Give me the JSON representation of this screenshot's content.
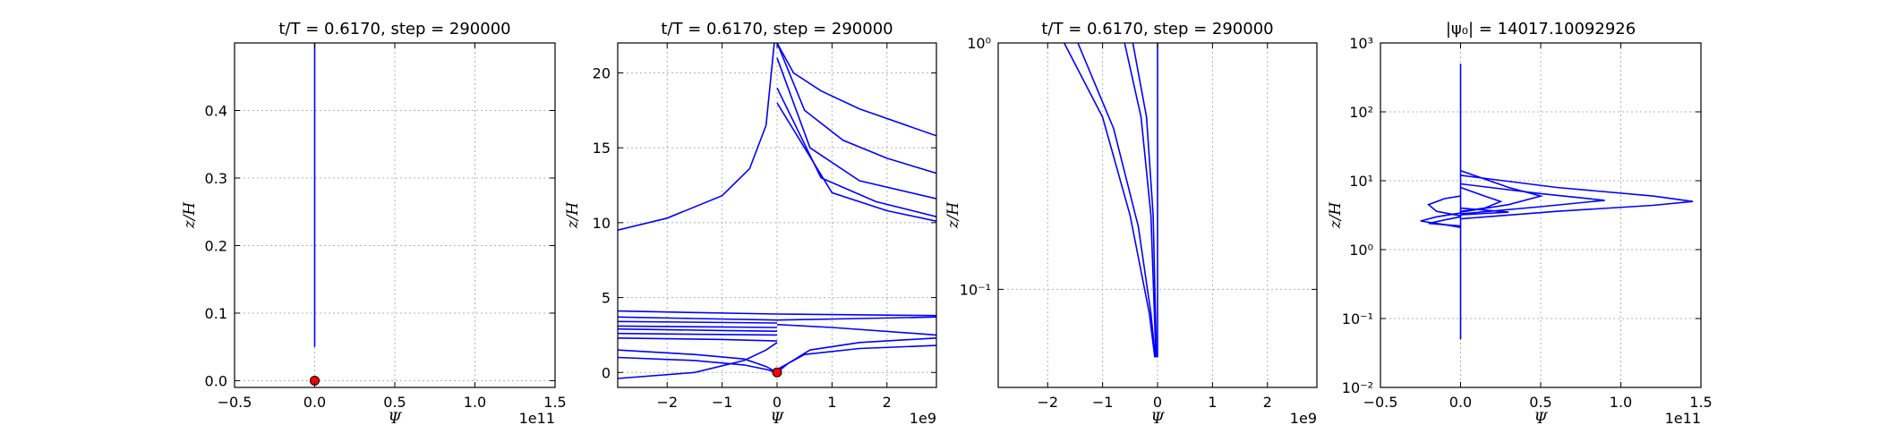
{
  "figure": {
    "colors": {
      "curve": "#0000ff",
      "marker": "#ff0000",
      "grid": "#b0b0b0"
    }
  },
  "chart_data": [
    {
      "type": "line",
      "title": "t/T = 0.6170, step = 290000",
      "xlabel": "Ψ",
      "ylabel": "z/H",
      "x_offset_text": "1e11",
      "xlim": [
        -0.5,
        1.5
      ],
      "ylim": [
        -0.01,
        0.5
      ],
      "xscale": "linear",
      "yscale": "linear",
      "grid": true,
      "xticks": [
        -0.5,
        0.0,
        0.5,
        1.0,
        1.5
      ],
      "xtick_labels": [
        "−0.5",
        "0.0",
        "0.5",
        "1.0",
        "1.5"
      ],
      "yticks": [
        0.0,
        0.1,
        0.2,
        0.3,
        0.4
      ],
      "ytick_labels": [
        "0.0",
        "0.1",
        "0.2",
        "0.3",
        "0.4"
      ],
      "series": [
        {
          "values": [
            [
              0.0,
              0.05
            ],
            [
              0.0,
              0.5
            ]
          ]
        }
      ],
      "markers": [
        {
          "x": 0.0,
          "y": 0.0
        }
      ]
    },
    {
      "type": "line",
      "title": "t/T = 0.6170, step = 290000",
      "xlabel": "Ψ",
      "ylabel": "z/H",
      "x_offset_text": "1e9",
      "xlim": [
        -2.9,
        2.9
      ],
      "ylim": [
        -1.0,
        22.0
      ],
      "xscale": "linear",
      "yscale": "linear",
      "grid": true,
      "xticks": [
        -2,
        -1,
        0,
        1,
        2
      ],
      "xtick_labels": [
        "−2",
        "−1",
        "0",
        "1",
        "2"
      ],
      "yticks": [
        0,
        5,
        10,
        15,
        20
      ],
      "ytick_labels": [
        "0",
        "5",
        "10",
        "15",
        "20"
      ],
      "series": [
        {
          "values": [
            [
              -2.9,
              9.5
            ],
            [
              -2.0,
              10.3
            ],
            [
              -1.0,
              11.8
            ],
            [
              -0.5,
              13.6
            ],
            [
              -0.2,
              16.5
            ],
            [
              -0.05,
              22.0
            ]
          ]
        },
        {
          "values": [
            [
              0.0,
              22.0
            ],
            [
              0.3,
              20.0
            ],
            [
              0.8,
              18.8
            ],
            [
              1.5,
              17.6
            ],
            [
              2.9,
              15.8
            ]
          ]
        },
        {
          "values": [
            [
              0.0,
              22.0
            ],
            [
              0.5,
              17.5
            ],
            [
              1.2,
              15.5
            ],
            [
              2.0,
              14.3
            ],
            [
              2.9,
              13.3
            ]
          ]
        },
        {
          "values": [
            [
              0.0,
              21.0
            ],
            [
              0.6,
              15.0
            ],
            [
              1.5,
              12.8
            ],
            [
              2.9,
              11.6
            ]
          ]
        },
        {
          "values": [
            [
              0.0,
              19.0
            ],
            [
              0.8,
              13.0
            ],
            [
              1.8,
              11.4
            ],
            [
              2.9,
              10.4
            ]
          ]
        },
        {
          "values": [
            [
              0.0,
              18.0
            ],
            [
              1.0,
              12.0
            ],
            [
              2.0,
              10.8
            ],
            [
              2.9,
              10.1
            ]
          ]
        },
        {
          "values": [
            [
              -2.9,
              4.1
            ],
            [
              -1.5,
              4.0
            ],
            [
              0.0,
              3.9
            ],
            [
              2.9,
              3.8
            ]
          ]
        },
        {
          "values": [
            [
              -2.9,
              3.7
            ],
            [
              -1.5,
              3.6
            ],
            [
              0.0,
              3.5
            ],
            [
              1.5,
              3.6
            ],
            [
              2.9,
              3.7
            ]
          ]
        },
        {
          "values": [
            [
              -2.9,
              3.4
            ],
            [
              0.0,
              3.3
            ]
          ]
        },
        {
          "values": [
            [
              -2.9,
              3.1
            ],
            [
              0.0,
              3.0
            ]
          ]
        },
        {
          "values": [
            [
              -2.9,
              2.9
            ],
            [
              -1.0,
              2.8
            ],
            [
              0.0,
              2.75
            ]
          ]
        },
        {
          "values": [
            [
              -2.9,
              2.6
            ],
            [
              0.0,
              2.5
            ]
          ]
        },
        {
          "values": [
            [
              -2.9,
              2.3
            ],
            [
              -1.0,
              2.2
            ],
            [
              0.0,
              2.1
            ]
          ]
        },
        {
          "values": [
            [
              -2.9,
              1.5
            ],
            [
              -1.5,
              1.2
            ],
            [
              -0.6,
              0.9
            ],
            [
              -0.2,
              0.4
            ],
            [
              0.0,
              0.0
            ]
          ]
        },
        {
          "values": [
            [
              -2.9,
              1.0
            ],
            [
              -1.5,
              0.8
            ],
            [
              -0.6,
              0.5
            ],
            [
              -0.2,
              0.2
            ],
            [
              0.0,
              0.0
            ]
          ]
        },
        {
          "values": [
            [
              -2.9,
              -0.4
            ],
            [
              -1.5,
              0.0
            ],
            [
              -0.6,
              0.8
            ],
            [
              -0.2,
              1.5
            ],
            [
              0.0,
              2.0
            ]
          ]
        },
        {
          "values": [
            [
              0.0,
              0.0
            ],
            [
              0.2,
              0.6
            ],
            [
              0.6,
              1.5
            ],
            [
              1.5,
              2.0
            ],
            [
              2.9,
              2.3
            ]
          ]
        },
        {
          "values": [
            [
              0.0,
              0.2
            ],
            [
              0.5,
              1.2
            ],
            [
              1.5,
              1.6
            ],
            [
              2.9,
              1.8
            ]
          ]
        },
        {
          "values": [
            [
              0.0,
              3.2
            ],
            [
              1.0,
              3.0
            ],
            [
              2.9,
              2.5
            ]
          ]
        }
      ],
      "markers": [
        {
          "x": 0.0,
          "y": 0.0
        }
      ]
    },
    {
      "type": "line",
      "title": "t/T = 0.6170, step = 290000",
      "xlabel": "Ψ",
      "ylabel": "z/H",
      "x_offset_text": "1e9",
      "xlim": [
        -2.9,
        2.9
      ],
      "ylim": [
        0.04,
        1.0
      ],
      "xscale": "linear",
      "yscale": "log",
      "grid": true,
      "xticks": [
        -2,
        -1,
        0,
        1,
        2
      ],
      "xtick_labels": [
        "−2",
        "−1",
        "0",
        "1",
        "2"
      ],
      "yticks": [
        0.1,
        1.0
      ],
      "ytick_labels": [
        "10⁻¹",
        "10⁰"
      ],
      "series": [
        {
          "values": [
            [
              -1.7,
              1.0
            ],
            [
              -1.0,
              0.5
            ],
            [
              -0.5,
              0.2
            ],
            [
              -0.15,
              0.08
            ],
            [
              -0.05,
              0.053
            ]
          ]
        },
        {
          "values": [
            [
              -1.45,
              1.0
            ],
            [
              -0.8,
              0.45
            ],
            [
              -0.35,
              0.18
            ],
            [
              -0.12,
              0.08
            ],
            [
              -0.04,
              0.053
            ]
          ]
        },
        {
          "values": [
            [
              -0.6,
              1.0
            ],
            [
              -0.3,
              0.5
            ],
            [
              -0.12,
              0.2
            ],
            [
              -0.03,
              0.053
            ]
          ]
        },
        {
          "values": [
            [
              -0.45,
              1.0
            ],
            [
              -0.2,
              0.5
            ],
            [
              -0.08,
              0.2
            ],
            [
              -0.02,
              0.053
            ]
          ]
        },
        {
          "values": [
            [
              0.0,
              0.053
            ],
            [
              0.0,
              1.0
            ]
          ]
        }
      ],
      "markers": []
    },
    {
      "type": "line",
      "title": "|ψ₀| = 14017.10092926",
      "xlabel": "Ψ",
      "ylabel": "z/H",
      "x_offset_text": "1e11",
      "xlim": [
        -0.5,
        1.5
      ],
      "ylim": [
        0.01,
        1000
      ],
      "xscale": "linear",
      "yscale": "log",
      "grid": true,
      "xticks": [
        -0.5,
        0.0,
        0.5,
        1.0,
        1.5
      ],
      "xtick_labels": [
        "−0.5",
        "0.0",
        "0.5",
        "1.0",
        "1.5"
      ],
      "yticks": [
        0.01,
        0.1,
        1,
        10,
        100,
        1000
      ],
      "ytick_labels": [
        "10⁻²",
        "10⁻¹",
        "10⁰",
        "10¹",
        "10²",
        "10³"
      ],
      "series": [
        {
          "values": [
            [
              0.0,
              0.05
            ],
            [
              0.0,
              500
            ]
          ]
        },
        {
          "values": [
            [
              0.0,
              12
            ],
            [
              0.6,
              8
            ],
            [
              1.2,
              6
            ],
            [
              1.45,
              5
            ],
            [
              1.2,
              4.4
            ],
            [
              0.6,
              3.6
            ],
            [
              0.0,
              2.8
            ]
          ]
        },
        {
          "values": [
            [
              0.0,
              9
            ],
            [
              0.5,
              6.5
            ],
            [
              0.9,
              5.2
            ],
            [
              0.5,
              4.2
            ],
            [
              0.0,
              3.3
            ]
          ]
        },
        {
          "values": [
            [
              0.0,
              14
            ],
            [
              0.3,
              8
            ],
            [
              0.5,
              6
            ],
            [
              0.3,
              4.5
            ],
            [
              0.0,
              3.5
            ]
          ]
        },
        {
          "values": [
            [
              0.0,
              8
            ],
            [
              0.15,
              6
            ],
            [
              0.25,
              5
            ],
            [
              0.15,
              4
            ],
            [
              0.0,
              3.6
            ]
          ]
        },
        {
          "values": [
            [
              0.0,
              6
            ],
            [
              -0.1,
              5.5
            ],
            [
              -0.2,
              4.5
            ],
            [
              -0.15,
              3.6
            ],
            [
              0.0,
              3.1
            ]
          ]
        },
        {
          "values": [
            [
              0.0,
              3.4
            ],
            [
              -0.15,
              3.0
            ],
            [
              -0.25,
              2.6
            ],
            [
              -0.1,
              2.3
            ],
            [
              0.0,
              2.1
            ]
          ]
        },
        {
          "values": [
            [
              0.0,
              3.0
            ],
            [
              -0.1,
              2.7
            ],
            [
              -0.2,
              2.4
            ],
            [
              0.0,
              2.2
            ]
          ]
        },
        {
          "values": [
            [
              0.0,
              4.0
            ],
            [
              0.3,
              3.5
            ],
            [
              0.0,
              3.2
            ]
          ]
        }
      ],
      "markers": []
    }
  ]
}
